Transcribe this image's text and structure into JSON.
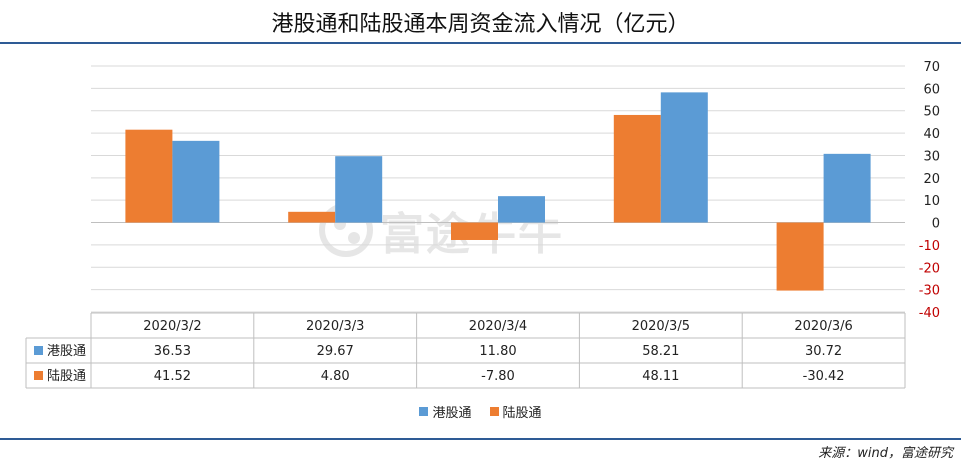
{
  "title": "港股通和陆股通本周资金流入情况（亿元）",
  "source": "来源：wind，富途研究",
  "watermark": "富途牛牛",
  "chart_data": {
    "type": "bar",
    "categories": [
      "2020/3/2",
      "2020/3/3",
      "2020/3/4",
      "2020/3/5",
      "2020/3/6"
    ],
    "series": [
      {
        "name": "陆股通",
        "color": "#ed7d31",
        "values": [
          41.52,
          4.8,
          -7.8,
          48.11,
          -30.42
        ],
        "labels": [
          "41.52",
          "4.80",
          "-7.80",
          "48.11",
          "-30.42"
        ]
      },
      {
        "name": "港股通",
        "color": "#5b9bd5",
        "values": [
          36.53,
          29.67,
          11.8,
          58.21,
          30.72
        ],
        "labels": [
          "36.53",
          "29.67",
          "11.80",
          "58.21",
          "30.72"
        ]
      }
    ],
    "table_order": [
      "港股通",
      "陆股通"
    ],
    "yticks": [
      70,
      60,
      50,
      40,
      30,
      20,
      10,
      0,
      -10,
      -20,
      -30,
      -40
    ],
    "ylim": [
      -40,
      70
    ],
    "negative_tick_color": "#c00000",
    "grid": true,
    "legend_position": "bottom",
    "data_table": true
  }
}
